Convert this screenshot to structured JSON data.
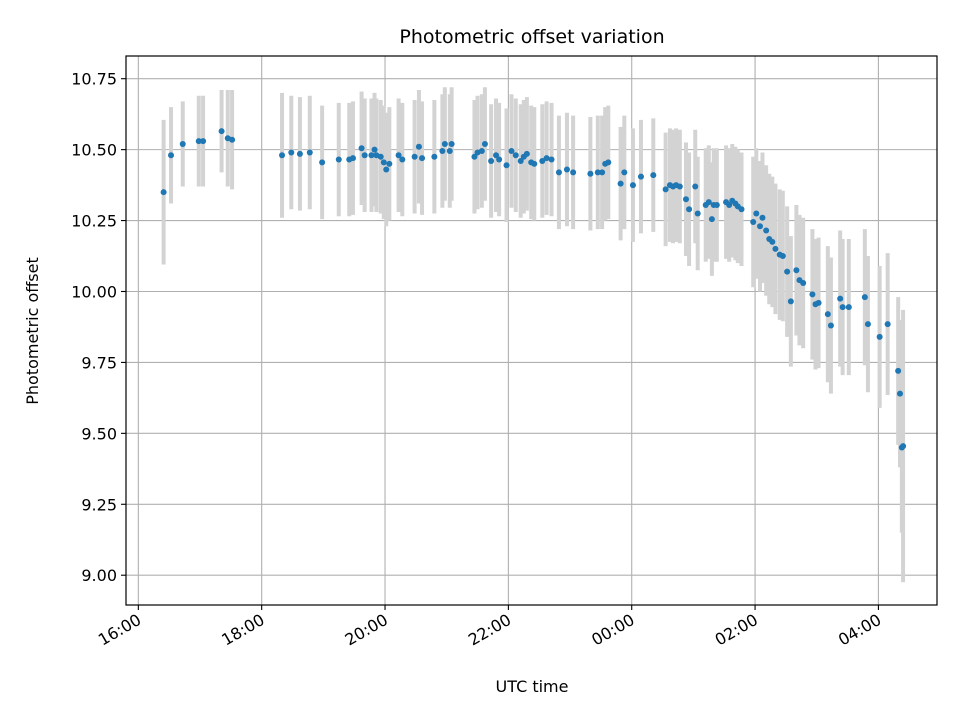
{
  "chart_data": {
    "type": "scatter",
    "title": "Photometric offset variation",
    "xlabel": "UTC time",
    "ylabel": "Photometric offset",
    "x_ticks": [
      "16:00",
      "18:00",
      "20:00",
      "22:00",
      "00:00",
      "02:00",
      "04:00"
    ],
    "y_ticks": [
      "9.00",
      "9.25",
      "9.50",
      "9.75",
      "10.00",
      "10.25",
      "10.50",
      "10.75"
    ],
    "xlim_hours": [
      15.8,
      28.95
    ],
    "ylim": [
      8.895,
      10.83
    ],
    "grid": true,
    "point_color": "#1f77b4",
    "errorbar_color": "#d3d3d3",
    "series": [
      {
        "x_hours": [
          16.41,
          16.53,
          16.72,
          16.98,
          17.05,
          17.35,
          17.45,
          17.52,
          18.33,
          18.48,
          18.62,
          18.78,
          18.98,
          19.25,
          19.42,
          19.48,
          19.62,
          19.67,
          19.78,
          19.83,
          19.86,
          19.93,
          19.98,
          20.02,
          20.07,
          20.22,
          20.28,
          20.48,
          20.55,
          20.6,
          20.8,
          20.93,
          20.97,
          21.05,
          21.08,
          21.45,
          21.5,
          21.57,
          21.62,
          21.72,
          21.8,
          21.85,
          21.97,
          22.05,
          22.12,
          22.2,
          22.25,
          22.3,
          22.37,
          22.42,
          22.55,
          22.62,
          22.7,
          22.82,
          22.95,
          23.05,
          23.33,
          23.45,
          23.52,
          23.57,
          23.62,
          23.82,
          23.88,
          24.02,
          24.15,
          24.35,
          24.55,
          24.62,
          24.67,
          24.72,
          24.78,
          24.88,
          24.93,
          25.03,
          25.07,
          25.2,
          25.25,
          25.3,
          25.33,
          25.38,
          25.53,
          25.58,
          25.63,
          25.68,
          25.72,
          25.78,
          25.97,
          26.02,
          26.08,
          26.12,
          26.18,
          26.23,
          26.28,
          26.33,
          26.4,
          26.45,
          26.52,
          26.58,
          26.67,
          26.72,
          26.78,
          26.93,
          26.98,
          27.03,
          27.18,
          27.23,
          27.38,
          27.42,
          27.52,
          27.78,
          27.83,
          28.02,
          28.15,
          28.32,
          28.35,
          28.38,
          28.4
        ],
        "y": [
          10.35,
          10.48,
          10.52,
          10.53,
          10.53,
          10.565,
          10.54,
          10.535,
          10.48,
          10.49,
          10.485,
          10.49,
          10.455,
          10.465,
          10.465,
          10.47,
          10.505,
          10.48,
          10.48,
          10.5,
          10.48,
          10.475,
          10.455,
          10.43,
          10.45,
          10.48,
          10.465,
          10.475,
          10.51,
          10.47,
          10.475,
          10.495,
          10.52,
          10.495,
          10.52,
          10.475,
          10.49,
          10.495,
          10.52,
          10.46,
          10.48,
          10.465,
          10.445,
          10.495,
          10.48,
          10.46,
          10.475,
          10.485,
          10.455,
          10.45,
          10.46,
          10.47,
          10.465,
          10.42,
          10.43,
          10.42,
          10.415,
          10.42,
          10.42,
          10.45,
          10.455,
          10.38,
          10.42,
          10.375,
          10.405,
          10.41,
          10.36,
          10.375,
          10.37,
          10.375,
          10.37,
          10.325,
          10.29,
          10.37,
          10.275,
          10.305,
          10.315,
          10.255,
          10.305,
          10.305,
          10.315,
          10.305,
          10.32,
          10.31,
          10.3,
          10.29,
          10.245,
          10.275,
          10.23,
          10.26,
          10.215,
          10.185,
          10.175,
          10.15,
          10.13,
          10.125,
          10.07,
          9.965,
          10.075,
          10.04,
          10.03,
          9.99,
          9.955,
          9.96,
          9.92,
          9.88,
          9.975,
          9.945,
          9.945,
          9.98,
          9.885,
          9.84,
          9.885,
          9.72,
          9.64,
          9.45,
          9.455
        ],
        "err": [
          0.255,
          0.17,
          0.15,
          0.16,
          0.16,
          0.145,
          0.17,
          0.175,
          0.22,
          0.2,
          0.2,
          0.2,
          0.2,
          0.2,
          0.2,
          0.2,
          0.2,
          0.2,
          0.2,
          0.2,
          0.2,
          0.2,
          0.2,
          0.2,
          0.2,
          0.2,
          0.2,
          0.2,
          0.2,
          0.2,
          0.2,
          0.2,
          0.2,
          0.2,
          0.2,
          0.2,
          0.2,
          0.2,
          0.2,
          0.2,
          0.2,
          0.2,
          0.2,
          0.2,
          0.2,
          0.2,
          0.2,
          0.2,
          0.2,
          0.2,
          0.2,
          0.2,
          0.2,
          0.2,
          0.2,
          0.2,
          0.2,
          0.2,
          0.2,
          0.2,
          0.2,
          0.2,
          0.2,
          0.2,
          0.2,
          0.2,
          0.2,
          0.2,
          0.2,
          0.2,
          0.2,
          0.2,
          0.2,
          0.2,
          0.2,
          0.2,
          0.2,
          0.2,
          0.2,
          0.2,
          0.2,
          0.2,
          0.2,
          0.2,
          0.2,
          0.2,
          0.23,
          0.23,
          0.23,
          0.23,
          0.23,
          0.23,
          0.23,
          0.23,
          0.23,
          0.23,
          0.23,
          0.23,
          0.23,
          0.23,
          0.23,
          0.23,
          0.23,
          0.23,
          0.24,
          0.24,
          0.24,
          0.24,
          0.24,
          0.24,
          0.24,
          0.25,
          0.25,
          0.26,
          0.26,
          0.3,
          0.48
        ]
      }
    ]
  }
}
